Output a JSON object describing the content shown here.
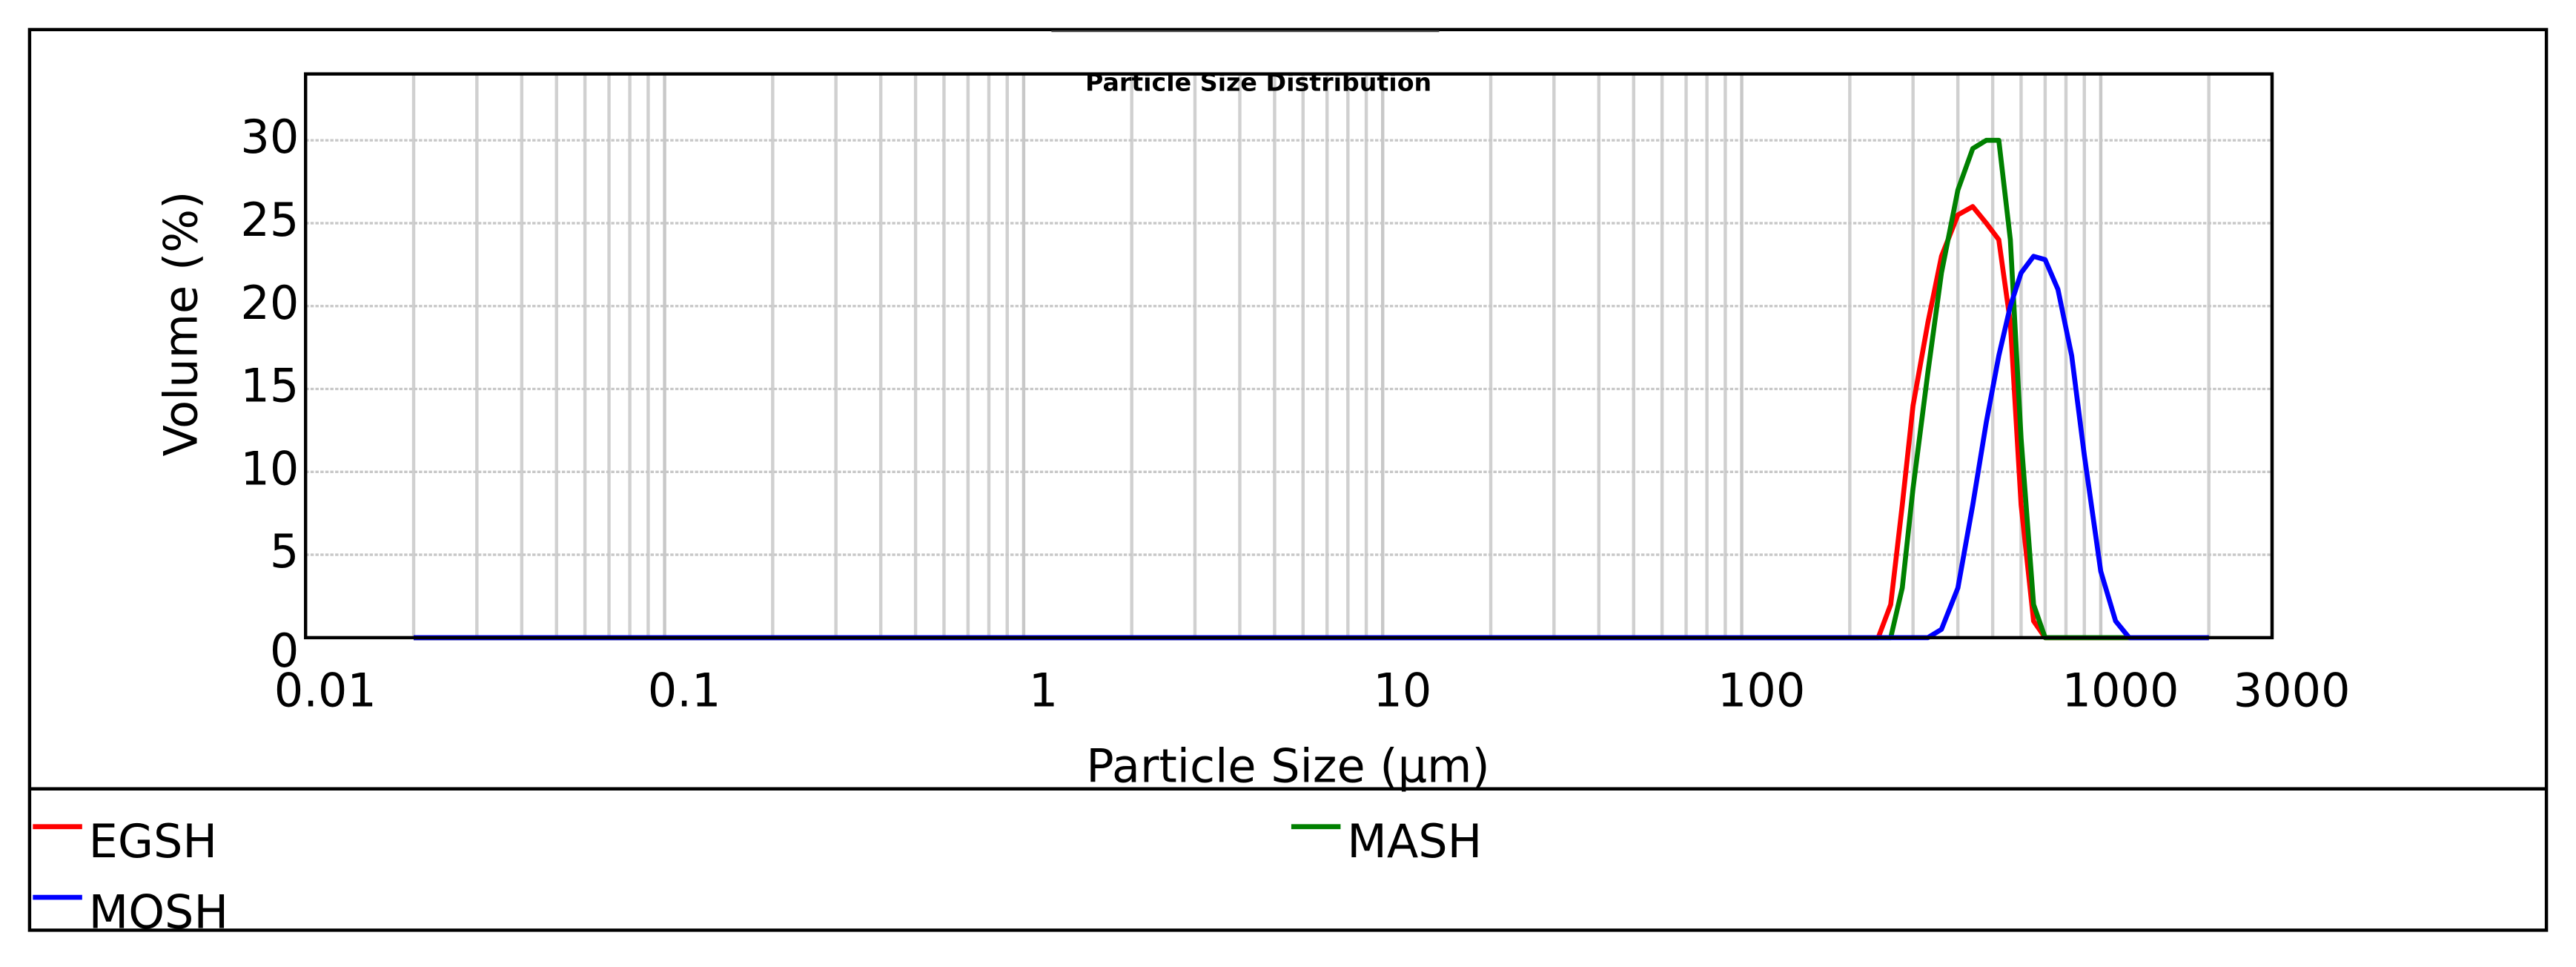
{
  "chart_data": {
    "type": "line",
    "title": "Particle Size Distribution",
    "x_label": "Particle Size (μm)",
    "y_label": "Volume (%)",
    "x": [
      0.02,
      200,
      240,
      260,
      280,
      300,
      330,
      360,
      400,
      440,
      480,
      520,
      560,
      600,
      650,
      700,
      760,
      830,
      900,
      1000,
      1100,
      1200,
      1400,
      2000
    ],
    "series": [
      {
        "name": "EGSH",
        "color": "#ff0000",
        "values": [
          0,
          0,
          0,
          2,
          8,
          14,
          19,
          23,
          25.5,
          26,
          25,
          24,
          19,
          8,
          1,
          0,
          0,
          0,
          0,
          0,
          0,
          0,
          0,
          0
        ]
      },
      {
        "name": "MASH",
        "color": "#008000",
        "values": [
          0,
          0,
          0,
          0,
          3,
          9,
          16,
          22,
          27,
          29.5,
          30,
          30,
          24,
          12,
          2,
          0,
          0,
          0,
          0,
          0,
          0,
          0,
          0,
          0
        ]
      },
      {
        "name": "MOSH",
        "color": "#0000ff",
        "values": [
          0,
          0,
          0,
          0,
          0,
          0,
          0,
          0.5,
          3,
          8,
          13,
          17,
          20,
          22,
          23,
          22.8,
          21,
          17,
          11,
          4,
          1,
          0,
          0,
          0
        ]
      }
    ],
    "xlog": true,
    "xlim": [
      0.01,
      3000
    ],
    "xticks": [
      0.01,
      0.1,
      1,
      10,
      100,
      1000,
      3000
    ],
    "ylim": [
      0,
      34
    ],
    "yticks": [
      0,
      5,
      10,
      15,
      20,
      25,
      30
    ],
    "grid": true,
    "minor_grid": true
  }
}
